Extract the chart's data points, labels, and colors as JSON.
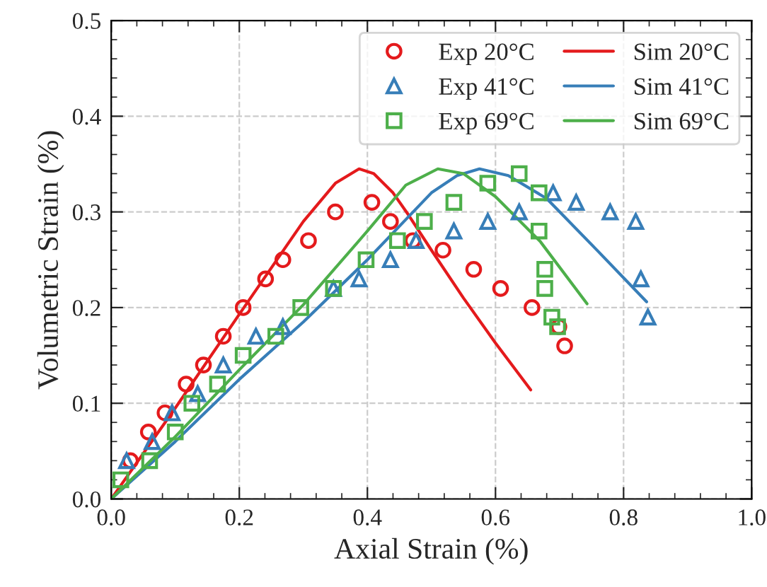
{
  "chart_data": {
    "type": "scatter",
    "xlabel": "Axial Strain (%)",
    "ylabel": "Volumetric Strain (%)",
    "xlim": [
      0,
      1
    ],
    "ylim": [
      0,
      0.5
    ],
    "xticks": [
      {
        "value": 0,
        "label": "0.0"
      },
      {
        "value": 0.2,
        "label": "0.2"
      },
      {
        "value": 0.4,
        "label": "0.4"
      },
      {
        "value": 0.6,
        "label": "0.6"
      },
      {
        "value": 0.8,
        "label": "0.8"
      },
      {
        "value": 1,
        "label": "1.0"
      }
    ],
    "yticks": [
      {
        "value": 0,
        "label": "0.0"
      },
      {
        "value": 0.1,
        "label": "0.1"
      },
      {
        "value": 0.2,
        "label": "0.2"
      },
      {
        "value": 0.3,
        "label": "0.3"
      },
      {
        "value": 0.4,
        "label": "0.4"
      },
      {
        "value": 0.5,
        "label": "0.5"
      }
    ],
    "grid": true,
    "legend": "top right",
    "series": [
      {
        "name": "Exp 20°C",
        "marker": "circle",
        "color": "#e41a1c",
        "x": [
          0.03,
          0.058,
          0.084,
          0.117,
          0.144,
          0.175,
          0.206,
          0.241,
          0.268,
          0.308,
          0.35,
          0.407,
          0.436,
          0.471,
          0.518,
          0.566,
          0.608,
          0.657,
          0.699,
          0.708
        ],
        "values": [
          0.04,
          0.07,
          0.09,
          0.12,
          0.14,
          0.17,
          0.2,
          0.23,
          0.25,
          0.27,
          0.3,
          0.31,
          0.29,
          0.27,
          0.26,
          0.24,
          0.22,
          0.2,
          0.18,
          0.16
        ]
      },
      {
        "name": "Exp 41°C",
        "marker": "triangle",
        "color": "#377eb8",
        "x": [
          0.024,
          0.064,
          0.095,
          0.135,
          0.175,
          0.226,
          0.268,
          0.347,
          0.387,
          0.436,
          0.476,
          0.535,
          0.588,
          0.637,
          0.69,
          0.726,
          0.779,
          0.819,
          0.827,
          0.838
        ],
        "values": [
          0.04,
          0.06,
          0.09,
          0.11,
          0.14,
          0.17,
          0.18,
          0.22,
          0.23,
          0.25,
          0.27,
          0.28,
          0.29,
          0.3,
          0.32,
          0.31,
          0.3,
          0.29,
          0.23,
          0.19
        ]
      },
      {
        "name": "Exp 69°C",
        "marker": "square",
        "color": "#4daf4a",
        "x": [
          0.015,
          0.06,
          0.1,
          0.126,
          0.166,
          0.206,
          0.257,
          0.296,
          0.347,
          0.398,
          0.447,
          0.489,
          0.535,
          0.588,
          0.637,
          0.668,
          0.668,
          0.677,
          0.677,
          0.688,
          0.697
        ],
        "values": [
          0.02,
          0.04,
          0.07,
          0.1,
          0.12,
          0.15,
          0.17,
          0.2,
          0.22,
          0.25,
          0.27,
          0.29,
          0.31,
          0.33,
          0.34,
          0.32,
          0.28,
          0.24,
          0.22,
          0.19,
          0.18
        ]
      },
      {
        "name": "Sim 20°C",
        "type": "line",
        "color": "#e41a1c",
        "x": [
          0,
          0.1,
          0.2,
          0.3,
          0.35,
          0.387,
          0.41,
          0.44,
          0.465,
          0.5,
          0.55,
          0.6,
          0.655
        ],
        "values": [
          0,
          0.095,
          0.193,
          0.29,
          0.33,
          0.345,
          0.34,
          0.32,
          0.296,
          0.26,
          0.21,
          0.163,
          0.114
        ]
      },
      {
        "name": "Sim 41°C",
        "type": "line",
        "color": "#377eb8",
        "x": [
          0,
          0.1,
          0.2,
          0.3,
          0.4,
          0.45,
          0.5,
          0.54,
          0.575,
          0.62,
          0.68,
          0.76,
          0.836
        ],
        "values": [
          0,
          0.06,
          0.125,
          0.185,
          0.25,
          0.285,
          0.32,
          0.338,
          0.345,
          0.338,
          0.314,
          0.259,
          0.206
        ]
      },
      {
        "name": "Sim 69°C",
        "type": "line",
        "color": "#4daf4a",
        "x": [
          0,
          0.1,
          0.2,
          0.3,
          0.4,
          0.46,
          0.51,
          0.55,
          0.6,
          0.67,
          0.743
        ],
        "values": [
          0,
          0.065,
          0.135,
          0.203,
          0.28,
          0.328,
          0.345,
          0.34,
          0.316,
          0.269,
          0.204
        ]
      }
    ]
  }
}
